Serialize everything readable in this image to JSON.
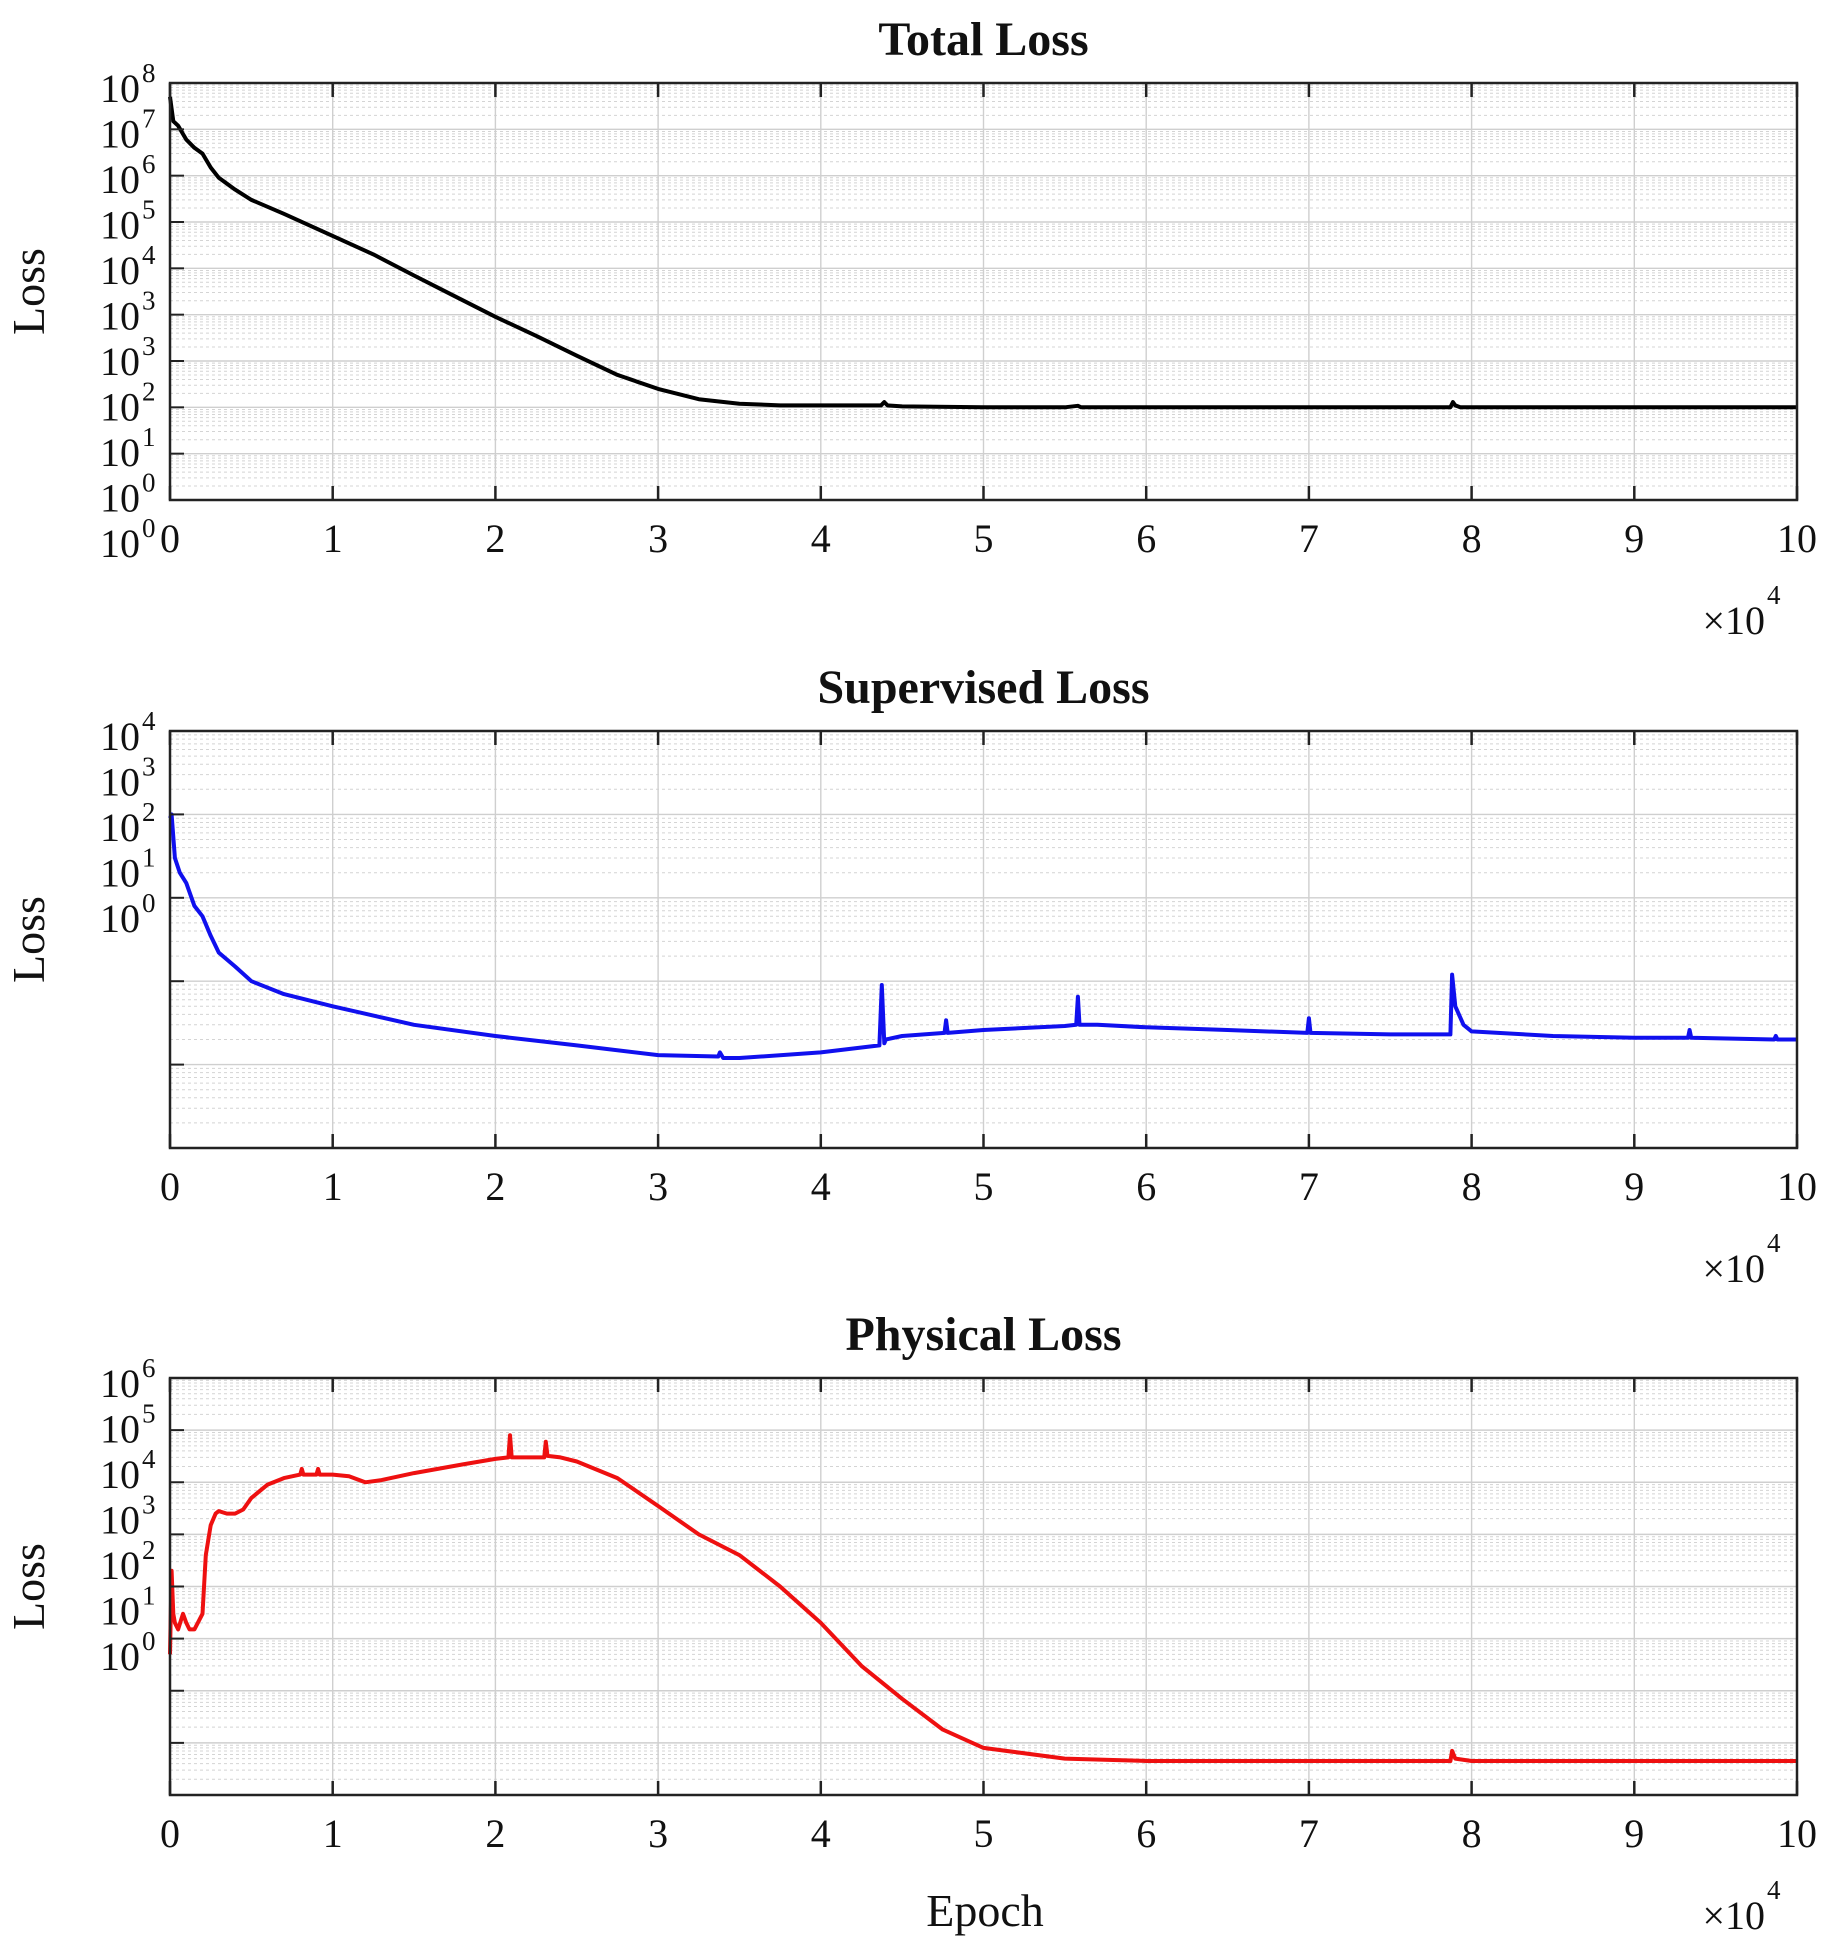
{
  "figure": {
    "xlabel": "Epoch"
  },
  "chart_data": [
    {
      "type": "line",
      "title": "Total Loss",
      "xlabel": "",
      "ylabel": "Loss",
      "x_scale_label": "×10",
      "x_scale_exp": "4",
      "xlim": [
        0,
        100000
      ],
      "ylim": [
        0.1,
        100000000
      ],
      "yscale": "log",
      "grid": true,
      "x_ticks": [
        0,
        10000,
        20000,
        30000,
        40000,
        50000,
        60000,
        70000,
        80000,
        90000,
        100000
      ],
      "x_tick_labels": [
        "0",
        "1",
        "2",
        "3",
        "4",
        "5",
        "6",
        "7",
        "8",
        "9",
        "10"
      ],
      "y_ticks": [
        {
          "base": "10",
          "exp": "8"
        },
        {
          "base": "10",
          "exp": "7"
        },
        {
          "base": "10",
          "exp": "6"
        },
        {
          "base": "10",
          "exp": "5"
        },
        {
          "base": "10",
          "exp": "4"
        },
        {
          "base": "10",
          "exp": "3"
        },
        {
          "base": "10",
          "exp": "3"
        },
        {
          "base": "10",
          "exp": "2"
        },
        {
          "base": "10",
          "exp": "1"
        },
        {
          "base": "10",
          "exp": "0"
        },
        {
          "base": "10",
          "exp": "0"
        }
      ],
      "series": [
        {
          "color": "#000000",
          "x": [
            0,
            200,
            500,
            1000,
            1500,
            2000,
            2500,
            3000,
            4000,
            5000,
            7000,
            10000,
            12500,
            15000,
            17500,
            20000,
            22500,
            25000,
            27500,
            30000,
            32500,
            35000,
            37500,
            40000,
            43700,
            43900,
            44100,
            45000,
            50000,
            55000,
            55800,
            56000,
            60000,
            65000,
            70000,
            75000,
            78700,
            78850,
            79000,
            79300,
            80000,
            85000,
            90000,
            95000,
            100000
          ],
          "y": [
            50000000,
            15000000,
            12000000,
            6000000,
            4000000,
            3000000,
            1500000,
            900000,
            500000,
            300000,
            150000,
            50000,
            20000,
            7000,
            2500,
            900,
            350,
            130,
            50,
            25,
            15,
            12,
            11,
            11,
            11,
            13,
            11,
            10.5,
            10,
            10,
            10.8,
            10,
            10,
            10,
            10,
            10,
            10,
            13,
            11,
            10,
            10,
            10,
            10,
            10,
            10
          ]
        }
      ]
    },
    {
      "type": "line",
      "title": "Supervised Loss",
      "xlabel": "",
      "ylabel": "Loss",
      "x_scale_label": "×10",
      "x_scale_exp": "4",
      "xlim": [
        0,
        100000
      ],
      "ylim": [
        0.1,
        10000
      ],
      "yscale": "log",
      "grid": true,
      "x_ticks": [
        0,
        10000,
        20000,
        30000,
        40000,
        50000,
        60000,
        70000,
        80000,
        90000,
        100000
      ],
      "x_tick_labels": [
        "0",
        "1",
        "2",
        "3",
        "4",
        "5",
        "6",
        "7",
        "8",
        "9",
        "10"
      ],
      "y_ticks": [
        {
          "base": "10",
          "exp": "4"
        },
        {
          "base": "10",
          "exp": "3"
        },
        {
          "base": "10",
          "exp": "2"
        },
        {
          "base": "10",
          "exp": "1"
        },
        {
          "base": "10",
          "exp": "0"
        }
      ],
      "series": [
        {
          "color": "#1010ee",
          "x": [
            0,
            100,
            300,
            600,
            1000,
            1500,
            2000,
            2500,
            3000,
            4000,
            5000,
            7000,
            10000,
            15000,
            20000,
            25000,
            30000,
            33700,
            33800,
            34000,
            35000,
            40000,
            43600,
            43750,
            43900,
            44000,
            45000,
            47600,
            47700,
            47800,
            50000,
            55000,
            55700,
            55800,
            55900,
            57000,
            60000,
            62500,
            65000,
            69900,
            70000,
            70100,
            75000,
            78700,
            78800,
            79000,
            79500,
            80000,
            85000,
            90000,
            93300,
            93400,
            93500,
            98600,
            98700,
            98800,
            100000
          ],
          "y": [
            900,
            1000,
            300,
            200,
            150,
            80,
            60,
            35,
            22,
            15,
            10,
            7,
            5,
            3,
            2.2,
            1.7,
            1.3,
            1.25,
            1.4,
            1.2,
            1.2,
            1.4,
            1.7,
            9,
            1.8,
            2,
            2.2,
            2.4,
            3.4,
            2.4,
            2.6,
            2.9,
            3,
            6.5,
            3,
            3,
            2.8,
            2.7,
            2.6,
            2.4,
            3.6,
            2.4,
            2.3,
            2.3,
            12,
            5,
            3,
            2.5,
            2.2,
            2.1,
            2.1,
            2.6,
            2.1,
            2,
            2.2,
            2,
            2
          ]
        }
      ]
    },
    {
      "type": "line",
      "title": "Physical Loss",
      "xlabel": "Epoch",
      "ylabel": "Loss",
      "x_scale_label": "×10",
      "x_scale_exp": "4",
      "xlim": [
        0,
        100000
      ],
      "ylim": [
        0.01,
        1000000
      ],
      "yscale": "log",
      "grid": true,
      "x_ticks": [
        0,
        10000,
        20000,
        30000,
        40000,
        50000,
        60000,
        70000,
        80000,
        90000,
        100000
      ],
      "x_tick_labels": [
        "0",
        "1",
        "2",
        "3",
        "4",
        "5",
        "6",
        "7",
        "8",
        "9",
        "10"
      ],
      "y_ticks": [
        {
          "base": "10",
          "exp": "6"
        },
        {
          "base": "10",
          "exp": "5"
        },
        {
          "base": "10",
          "exp": "4"
        },
        {
          "base": "10",
          "exp": "3"
        },
        {
          "base": "10",
          "exp": "2"
        },
        {
          "base": "10",
          "exp": "1"
        },
        {
          "base": "10",
          "exp": "0"
        }
      ],
      "series": [
        {
          "color": "#ee1010",
          "x": [
            0,
            100,
            200,
            300,
            500,
            800,
            1000,
            1200,
            1500,
            2000,
            2200,
            2500,
            2800,
            3000,
            3500,
            4000,
            4500,
            5000,
            6000,
            7000,
            8000,
            8100,
            8200,
            9000,
            9100,
            9200,
            10000,
            11000,
            12000,
            13000,
            15000,
            18000,
            20000,
            20800,
            20900,
            21000,
            22000,
            23000,
            23100,
            23200,
            24000,
            25000,
            27500,
            30000,
            32500,
            35000,
            37500,
            40000,
            42500,
            45000,
            47500,
            50000,
            55000,
            60000,
            65000,
            70000,
            75000,
            78700,
            78800,
            79000,
            80000,
            85000,
            90000,
            95000,
            100000
          ],
          "y": [
            5,
            200,
            30,
            20,
            15,
            30,
            20,
            15,
            15,
            30,
            400,
            1500,
            2500,
            2800,
            2500,
            2500,
            3000,
            5000,
            9000,
            12000,
            14000,
            18000,
            14000,
            14000,
            18000,
            14000,
            14000,
            13000,
            10000,
            11000,
            15000,
            22000,
            28000,
            30000,
            80000,
            30000,
            30000,
            30000,
            60000,
            32000,
            30000,
            25000,
            12000,
            3500,
            1000,
            400,
            100,
            20,
            3,
            0.7,
            0.18,
            0.08,
            0.05,
            0.045,
            0.045,
            0.045,
            0.045,
            0.045,
            0.07,
            0.05,
            0.045,
            0.045,
            0.045,
            0.045,
            0.045
          ]
        }
      ]
    }
  ]
}
